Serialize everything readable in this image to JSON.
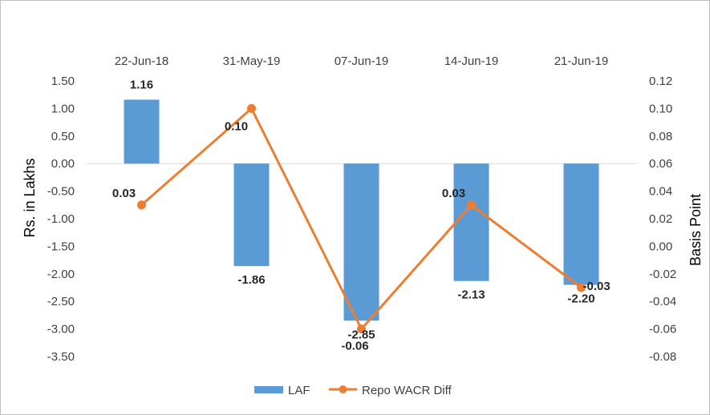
{
  "chart_data": {
    "type": "bar",
    "categories": [
      "22-Jun-18",
      "31-May-19",
      "07-Jun-19",
      "14-Jun-19",
      "21-Jun-19"
    ],
    "series": [
      {
        "name": "LAF",
        "type": "bar",
        "axis": "left",
        "values": [
          1.16,
          -1.86,
          -2.85,
          -2.13,
          -2.2
        ],
        "labels": [
          "1.16",
          "-1.86",
          "-2.85",
          "-2.13",
          "-2.20"
        ],
        "color": "#5B9BD5"
      },
      {
        "name": "Repo WACR Diff",
        "type": "line",
        "axis": "right",
        "values": [
          0.03,
          0.1,
          -0.06,
          0.03,
          -0.03
        ],
        "labels": [
          "0.03",
          "0.10",
          "-0.06",
          "0.03",
          "-0.03"
        ],
        "color": "#ED7D31"
      }
    ],
    "ylabel": "Rs. in Lakhs",
    "y2label": "Basis Point",
    "ylim": [
      -3.5,
      1.5
    ],
    "y2lim": [
      -0.08,
      0.12
    ],
    "yticks": [
      "1.50",
      "1.00",
      "0.50",
      "0.00",
      "-0.50",
      "-1.00",
      "-1.50",
      "-2.00",
      "-2.50",
      "-3.00",
      "-3.50"
    ],
    "y2ticks": [
      "0.12",
      "0.10",
      "0.08",
      "0.06",
      "0.04",
      "0.02",
      "0.00",
      "-0.02",
      "-0.04",
      "-0.06",
      "-0.08"
    ],
    "category_axis_position": "top",
    "grid": false,
    "legend": "bottom"
  }
}
